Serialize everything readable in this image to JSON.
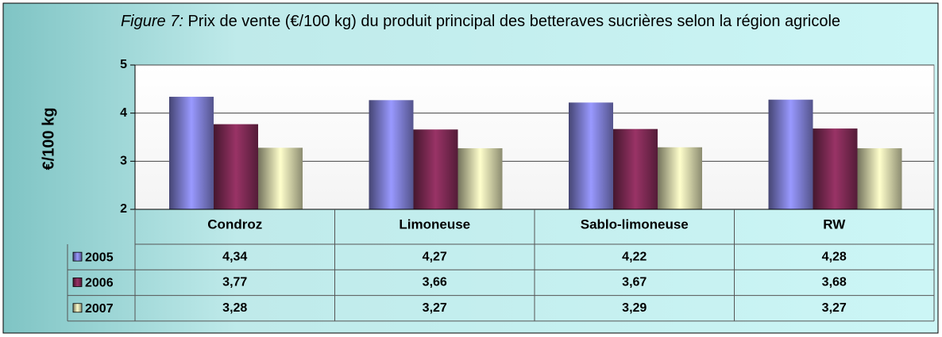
{
  "chart_data": {
    "type": "bar",
    "title_label": "Figure 7:",
    "title": "Prix de vente (€/100 kg) du produit principal des betteraves sucrières selon la région agricole",
    "ylabel": "€/100 kg",
    "categories": [
      "Condroz",
      "Limoneuse",
      "Sablo-limoneuse",
      "RW"
    ],
    "series": [
      {
        "name": "2005",
        "color": "#9999ff",
        "values": [
          4.34,
          4.27,
          4.22,
          4.28
        ],
        "value_labels": [
          "4,34",
          "4,27",
          "4,22",
          "4,28"
        ]
      },
      {
        "name": "2006",
        "color": "#993366",
        "values": [
          3.77,
          3.66,
          3.67,
          3.68
        ],
        "value_labels": [
          "3,77",
          "3,66",
          "3,67",
          "3,68"
        ]
      },
      {
        "name": "2007",
        "color": "#ffffcc",
        "values": [
          3.28,
          3.27,
          3.29,
          3.27
        ],
        "value_labels": [
          "3,28",
          "3,27",
          "3,29",
          "3,27"
        ]
      }
    ],
    "ylim": [
      2,
      5
    ],
    "yticks": [
      2,
      3,
      4,
      5
    ],
    "grid": true
  }
}
